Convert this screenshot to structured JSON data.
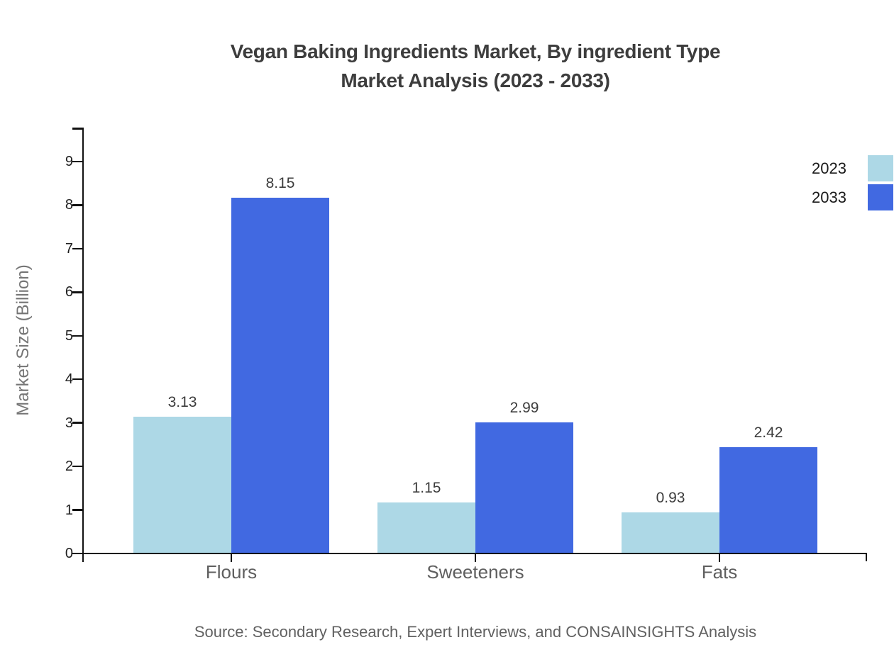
{
  "title": {
    "line1": "Vegan Baking Ingredients Market, By ingredient Type",
    "line2": "Market Analysis (2023 - 2033)"
  },
  "source": "Source: Secondary Research, Expert Interviews, and CONSAINSIGHTS Analysis",
  "chart_data": {
    "type": "bar",
    "title": "Vegan Baking Ingredients Market, By ingredient Type Market Analysis (2023 - 2033)",
    "categories": [
      "Flours",
      "Sweeteners",
      "Fats"
    ],
    "series": [
      {
        "name": "2023",
        "color": "#ADD8E6",
        "values": [
          3.13,
          1.15,
          0.93
        ]
      },
      {
        "name": "2033",
        "color": "#4169E1",
        "values": [
          8.15,
          2.99,
          2.42
        ]
      }
    ],
    "xlabel": "",
    "ylabel": "Market Size (Billion)",
    "yticks": [
      0,
      1,
      2,
      3,
      4,
      5,
      6,
      7,
      8,
      9
    ],
    "ylim": [
      0,
      9.78
    ],
    "grid": false,
    "legend_position": "top-right-outside",
    "value_label_decimals": 2
  },
  "colors": {
    "background": "#FFFFFF",
    "axis": "#111111",
    "title_text": "#3D3D3D",
    "tick_label_text": "#1F1F1F",
    "category_label_text": "#5F5F5F",
    "axis_title_text": "#757575",
    "value_label_text": "#3C3C3C",
    "legend_label_text": "#1A1A1A",
    "source_text": "#616161",
    "series_2023": "#ADD8E6",
    "series_2033": "#4169E1"
  }
}
